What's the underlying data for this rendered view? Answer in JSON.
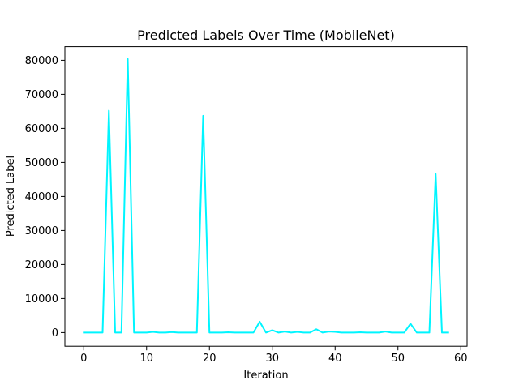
{
  "chart_data": {
    "type": "line",
    "title": "Predicted Labels Over Time (MobileNet)",
    "xlabel": "Iteration",
    "ylabel": "Predicted Label",
    "xlim": [
      -3,
      61
    ],
    "ylim": [
      -4000,
      84000
    ],
    "xticks": [
      0,
      10,
      20,
      30,
      40,
      50,
      60
    ],
    "yticks": [
      0,
      10000,
      20000,
      30000,
      40000,
      50000,
      60000,
      70000,
      80000
    ],
    "grid": false,
    "legend": "none",
    "series": [
      {
        "color": "#00f5ff",
        "x": [
          0,
          1,
          2,
          3,
          4,
          5,
          6,
          7,
          8,
          9,
          10,
          11,
          12,
          13,
          14,
          15,
          16,
          17,
          18,
          19,
          20,
          21,
          22,
          23,
          24,
          25,
          26,
          27,
          28,
          29,
          30,
          31,
          32,
          33,
          34,
          35,
          36,
          37,
          38,
          39,
          40,
          41,
          42,
          43,
          44,
          45,
          46,
          47,
          48,
          49,
          50,
          51,
          52,
          53,
          54,
          55,
          56,
          57,
          58
        ],
        "y": [
          0,
          0,
          0,
          0,
          65200,
          0,
          0,
          80400,
          0,
          0,
          0,
          200,
          0,
          0,
          150,
          0,
          0,
          0,
          0,
          63700,
          0,
          0,
          0,
          100,
          0,
          0,
          0,
          0,
          3200,
          0,
          700,
          0,
          300,
          0,
          200,
          0,
          0,
          1000,
          0,
          300,
          200,
          0,
          0,
          0,
          100,
          0,
          0,
          0,
          300,
          0,
          0,
          0,
          2600,
          0,
          0,
          0,
          46600,
          0,
          0
        ]
      }
    ]
  }
}
